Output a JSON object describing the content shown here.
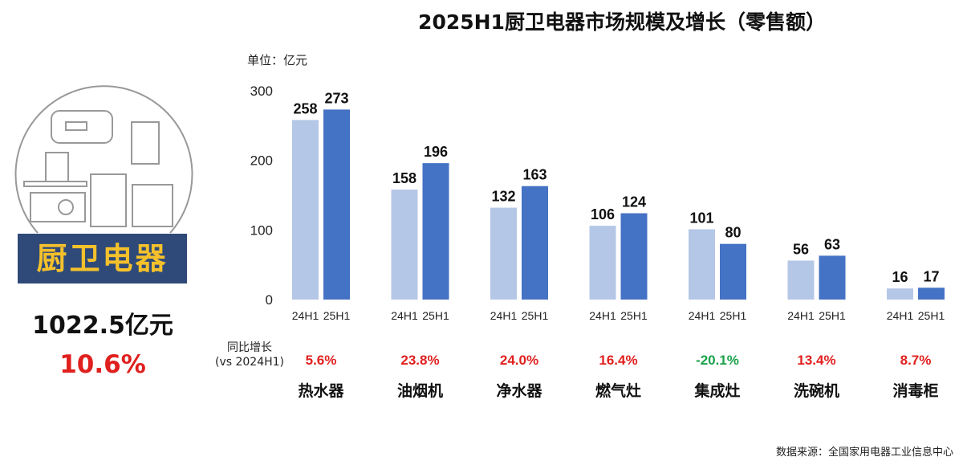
{
  "chart_data": {
    "type": "bar",
    "title": "2025H1厨卫电器市场规模及增长（零售额）",
    "unit_label": "单位：亿元",
    "ylim": [
      0,
      300
    ],
    "yticks": [
      0,
      100,
      200,
      300
    ],
    "grid": false,
    "categories": [
      "热水器",
      "油烟机",
      "净水器",
      "燃气灶",
      "集成灶",
      "洗碗机",
      "消毒柜"
    ],
    "series": [
      {
        "name": "24H1",
        "color": "#b4c7e7",
        "values": [
          258,
          158,
          132,
          106,
          101,
          56,
          16
        ]
      },
      {
        "name": "25H1",
        "color": "#4472c4",
        "values": [
          273,
          196,
          163,
          124,
          80,
          63,
          17
        ]
      }
    ],
    "growth_label_line1": "同比增长",
    "growth_label_line2": "(vs 2024H1)",
    "growth": [
      "5.6%",
      "23.8%",
      "24.0%",
      "16.4%",
      "-20.1%",
      "13.4%",
      "8.7%"
    ],
    "positive_color": "#e0201e",
    "negative_color": "#1aa14a"
  },
  "summary": {
    "banner": "厨卫电器",
    "total": "1022.5亿元",
    "growth": "10.6%",
    "banner_color": "#2f4a78",
    "banner_text_color": "#f5c12b"
  },
  "source": "数据来源：全国家用电器工业信息中心"
}
